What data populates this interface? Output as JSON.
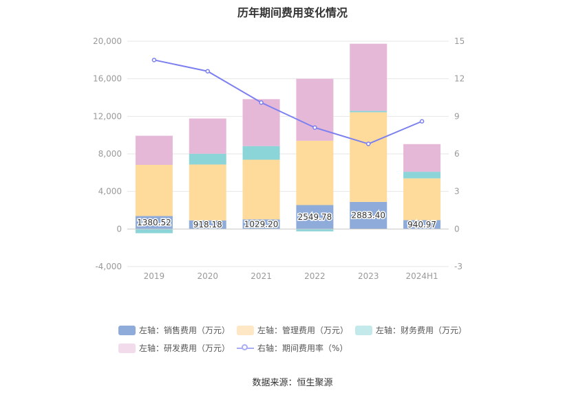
{
  "title": "历年期间费用变化情况",
  "source": "数据来源：恒生聚源",
  "colors": {
    "sales": "#8eabd9",
    "admin": "#fedb9b",
    "finance": "#8bd4d8",
    "rd": "#e6b8d8",
    "ratio": "#7b7ff0"
  },
  "legend": [
    {
      "label": "左轴：销售费用（万元）",
      "color": "#8eabd9",
      "kind": "bar"
    },
    {
      "label": "左轴：管理费用（万元）",
      "color": "#fde7c4",
      "kind": "bar"
    },
    {
      "label": "左轴：财务费用（万元）",
      "color": "#c3e9ea",
      "kind": "bar"
    },
    {
      "label": "左轴：研发费用（万元）",
      "color": "#f2dbeb",
      "kind": "bar"
    },
    {
      "label": "右轴：期间费用率（%）",
      "color": "#a9acf5",
      "kind": "line"
    }
  ],
  "chart_data": {
    "type": "bar",
    "stacked": true,
    "categories": [
      "2019",
      "2020",
      "2021",
      "2022",
      "2023",
      "2024H1"
    ],
    "left_axis": {
      "min": -4000,
      "max": 20000,
      "ticks": [
        -4000,
        0,
        4000,
        8000,
        12000,
        16000,
        20000
      ],
      "tick_labels": [
        "-4,000",
        "0",
        "4,000",
        "8,000",
        "12,000",
        "16,000",
        "20,000"
      ]
    },
    "right_axis": {
      "min": -3,
      "max": 15,
      "ticks": [
        -3,
        0,
        3,
        6,
        9,
        12,
        15
      ],
      "tick_labels": [
        "-3",
        "0",
        "3",
        "6",
        "9",
        "12",
        "15"
      ]
    },
    "series": [
      {
        "name": "左轴：销售费用（万元）",
        "axis": "left",
        "type": "bar",
        "values": [
          1380.52,
          918.18,
          1029.2,
          2549.78,
          2883.4,
          940.97
        ],
        "labels": [
          "1380.52",
          "918.18",
          "1029.20",
          "2549.78",
          "2883.40",
          "940.97"
        ]
      },
      {
        "name": "左轴：管理费用（万元）",
        "axis": "left",
        "type": "bar",
        "values": [
          5450,
          5950,
          6350,
          6850,
          9550,
          4450
        ]
      },
      {
        "name": "左轴：财务费用（万元）",
        "axis": "left",
        "type": "bar",
        "values": [
          -450,
          1150,
          1450,
          -250,
          150,
          700
        ]
      },
      {
        "name": "左轴：研发费用（万元）",
        "axis": "left",
        "type": "bar",
        "values": [
          3100,
          3750,
          5000,
          6600,
          7150,
          2950
        ]
      },
      {
        "name": "右轴：期间费用率（%）",
        "axis": "right",
        "type": "line",
        "values": [
          13.5,
          12.6,
          10.1,
          8.1,
          6.8,
          8.6
        ]
      }
    ],
    "grid": true,
    "legend_position": "bottom"
  }
}
